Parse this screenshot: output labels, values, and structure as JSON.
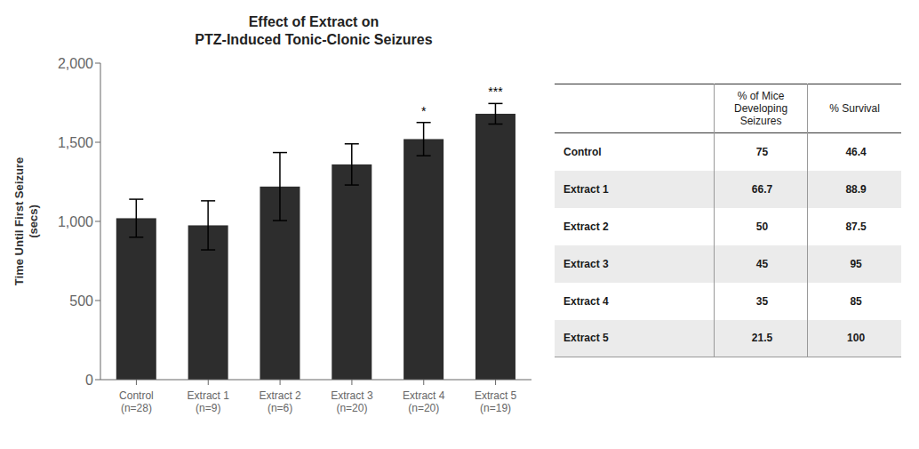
{
  "chart_data": [
    {
      "type": "bar",
      "title": "Effect of Extract on\nPTZ-Induced Tonic-Clonic Seizures",
      "ylabel": "Time Until First Seizure\n(secs)",
      "categories": [
        "Control\n(n=28)",
        "Extract 1\n(n=9)",
        "Extract 2\n(n=6)",
        "Extract 3\n(n=20)",
        "Extract 4\n(n=20)",
        "Extract 5\n(n=19)"
      ],
      "values": [
        1020,
        975,
        1220,
        1360,
        1520,
        1680
      ],
      "errors": [
        120,
        155,
        215,
        130,
        105,
        65
      ],
      "significance": [
        null,
        null,
        null,
        null,
        "*",
        "***"
      ],
      "color": "#2d2d2d",
      "ylim": [
        0,
        2000
      ],
      "yticks": [
        0,
        500,
        {
          "value": 1000,
          "label": "1,000"
        },
        {
          "value": 1500,
          "label": "1,500"
        },
        {
          "value": 2000,
          "label": "2,000"
        }
      ],
      "grid": false
    },
    {
      "type": "table",
      "columns": [
        null,
        "% of Mice\nDeveloping\nSeizures",
        "% Survival"
      ],
      "rows": [
        [
          "Control",
          "75",
          "46.4"
        ],
        [
          "Extract 1",
          "66.7",
          "88.9"
        ],
        [
          "Extract 2",
          "50",
          "87.5"
        ],
        [
          "Extract 3",
          "45",
          "95"
        ],
        [
          "Extract 4",
          "35",
          "85"
        ],
        [
          "Extract 5",
          "21.5",
          "100"
        ]
      ],
      "colors": [
        "#ffffff",
        "#ebebeb",
        "#ffffff",
        "#ebebeb",
        "#ffffff",
        "#ebebeb"
      ]
    }
  ]
}
